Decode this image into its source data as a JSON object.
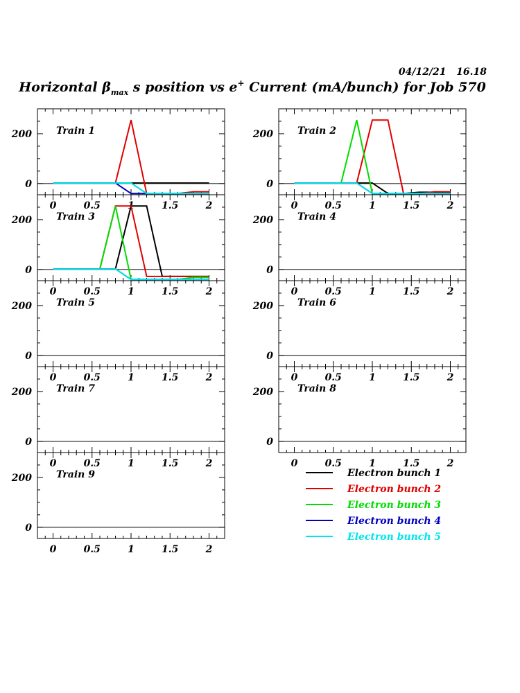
{
  "header": {
    "timestamp": "04/12/21   16.18",
    "title_main": "Horizontal β",
    "title_sub": "max",
    "title_rest": " s position vs e",
    "title_sup": "+",
    "title_end": " Current (mA/bunch) for Job 570"
  },
  "colors": {
    "bunch1": "#000000",
    "bunch2": "#e00000",
    "bunch3": "#00dd00",
    "bunch4": "#0000c0",
    "bunch5": "#00e5ee"
  },
  "legend": [
    {
      "label": "Electron bunch 1",
      "color": "#000000"
    },
    {
      "label": "Electron bunch 2",
      "color": "#e00000"
    },
    {
      "label": "Electron bunch 3",
      "color": "#00dd00"
    },
    {
      "label": "Electron bunch 4",
      "color": "#0000c0"
    },
    {
      "label": "Electron bunch 5",
      "color": "#00e5ee"
    }
  ],
  "chart_data": [
    {
      "type": "line",
      "label": "Train 1",
      "xlim": [
        -0.2,
        2.2
      ],
      "ylim": [
        -45,
        300
      ],
      "xticks": [
        "0",
        "0.5",
        "1",
        "1.5",
        "2"
      ],
      "yticks": [
        "0",
        "200"
      ],
      "x": [
        0,
        0.2,
        0.4,
        0.6,
        0.8,
        1.0,
        1.2,
        1.4,
        1.6,
        1.8,
        2.0
      ],
      "series": [
        {
          "bunch": 1,
          "values": [
            2,
            2,
            2,
            2,
            2,
            2,
            2,
            2,
            2,
            2,
            2
          ]
        },
        {
          "bunch": 2,
          "values": [
            2,
            2,
            2,
            2,
            2,
            255,
            -40,
            -40,
            -40,
            -33,
            -33
          ]
        },
        {
          "bunch": 3,
          "values": [
            2,
            2,
            2,
            2,
            2,
            2,
            -40,
            -40,
            -40,
            -40,
            -40
          ]
        },
        {
          "bunch": 4,
          "values": [
            2,
            2,
            2,
            2,
            2,
            -40,
            -40,
            -40,
            -40,
            -40,
            -40
          ]
        },
        {
          "bunch": 5,
          "values": [
            2,
            2,
            2,
            2,
            2,
            2,
            -40,
            -40,
            -40,
            -40,
            -40
          ]
        }
      ]
    },
    {
      "type": "line",
      "label": "Train 2",
      "xlim": [
        -0.2,
        2.2
      ],
      "ylim": [
        -45,
        300
      ],
      "xticks": [
        "0",
        "0.5",
        "1",
        "1.5",
        "2"
      ],
      "yticks": [
        "0",
        "200"
      ],
      "x": [
        0,
        0.2,
        0.4,
        0.6,
        0.8,
        1.0,
        1.2,
        1.4,
        1.6,
        1.8,
        2.0
      ],
      "series": [
        {
          "bunch": 1,
          "values": [
            2,
            2,
            2,
            2,
            2,
            2,
            -40,
            -40,
            -35,
            -35,
            -35
          ]
        },
        {
          "bunch": 2,
          "values": [
            2,
            2,
            2,
            2,
            2,
            255,
            255,
            -40,
            -40,
            -33,
            -33
          ]
        },
        {
          "bunch": 3,
          "values": [
            2,
            2,
            2,
            2,
            255,
            -40,
            -40,
            -40,
            -40,
            -40,
            -40
          ]
        },
        {
          "bunch": 4,
          "values": [
            2,
            2,
            2,
            2,
            2,
            -40,
            -40,
            -40,
            -40,
            -40,
            -40
          ]
        },
        {
          "bunch": 5,
          "values": [
            2,
            2,
            2,
            2,
            2,
            -40,
            -40,
            -40,
            -40,
            -40,
            -40
          ]
        }
      ]
    },
    {
      "type": "line",
      "label": "Train 3",
      "xlim": [
        -0.2,
        2.2
      ],
      "ylim": [
        -45,
        300
      ],
      "xticks": [
        "0",
        "0.5",
        "1",
        "1.5",
        "2"
      ],
      "yticks": [
        "0",
        "200"
      ],
      "x": [
        0,
        0.2,
        0.4,
        0.6,
        0.8,
        1.0,
        1.2,
        1.4,
        1.6,
        1.8,
        2.0
      ],
      "series": [
        {
          "bunch": 1,
          "values": [
            2,
            2,
            2,
            2,
            2,
            255,
            255,
            -28,
            -28,
            -28,
            -28
          ]
        },
        {
          "bunch": 2,
          "values": [
            2,
            2,
            2,
            2,
            255,
            255,
            -28,
            -28,
            -28,
            -28,
            -28
          ]
        },
        {
          "bunch": 3,
          "values": [
            2,
            2,
            2,
            2,
            255,
            -40,
            -40,
            -40,
            -40,
            -32,
            -32
          ]
        },
        {
          "bunch": 4,
          "values": [
            2,
            2,
            2,
            2,
            2,
            -40,
            -40,
            -40,
            -40,
            -40,
            -40
          ]
        },
        {
          "bunch": 5,
          "values": [
            2,
            2,
            2,
            2,
            2,
            -40,
            -40,
            -40,
            -40,
            -40,
            -40
          ]
        }
      ]
    },
    {
      "type": "line",
      "label": "Train 4",
      "xlim": [
        -0.2,
        2.2
      ],
      "ylim": [
        -45,
        300
      ],
      "xticks": [
        "0",
        "0.5",
        "1",
        "1.5",
        "2"
      ],
      "yticks": [
        "0",
        "200"
      ],
      "series": []
    },
    {
      "type": "line",
      "label": "Train 5",
      "xlim": [
        -0.2,
        2.2
      ],
      "ylim": [
        -45,
        300
      ],
      "xticks": [
        "0",
        "0.5",
        "1",
        "1.5",
        "2"
      ],
      "yticks": [
        "0",
        "200"
      ],
      "series": []
    },
    {
      "type": "line",
      "label": "Train 6",
      "xlim": [
        -0.2,
        2.2
      ],
      "ylim": [
        -45,
        300
      ],
      "xticks": [
        "0",
        "0.5",
        "1",
        "1.5",
        "2"
      ],
      "yticks": [
        "0",
        "200"
      ],
      "series": []
    },
    {
      "type": "line",
      "label": "Train 7",
      "xlim": [
        -0.2,
        2.2
      ],
      "ylim": [
        -45,
        300
      ],
      "xticks": [
        "0",
        "0.5",
        "1",
        "1.5",
        "2"
      ],
      "yticks": [
        "0",
        "200"
      ],
      "series": []
    },
    {
      "type": "line",
      "label": "Train 8",
      "xlim": [
        -0.2,
        2.2
      ],
      "ylim": [
        -45,
        300
      ],
      "xticks": [
        "0",
        "0.5",
        "1",
        "1.5",
        "2"
      ],
      "yticks": [
        "0",
        "200"
      ],
      "series": []
    },
    {
      "type": "line",
      "label": "Train 9",
      "xlim": [
        -0.2,
        2.2
      ],
      "ylim": [
        -45,
        300
      ],
      "xticks": [
        "0",
        "0.5",
        "1",
        "1.5",
        "2"
      ],
      "yticks": [
        "0",
        "200"
      ],
      "series": []
    }
  ]
}
